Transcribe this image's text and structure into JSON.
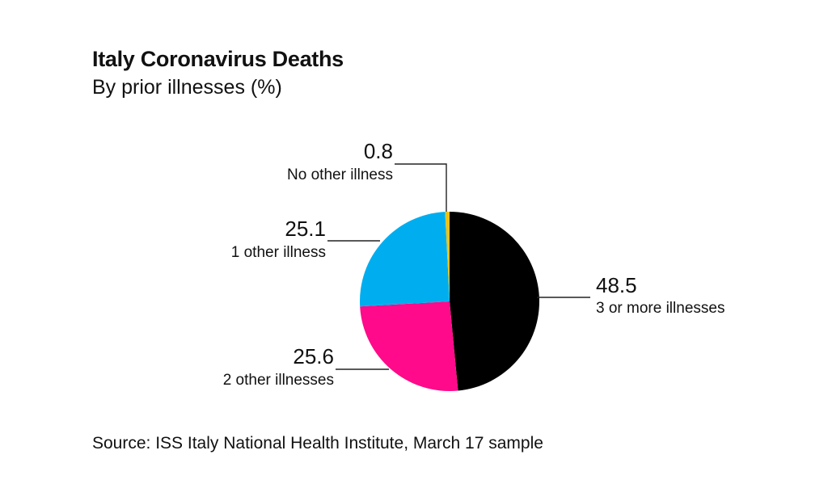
{
  "header": {
    "title": "Italy Coronavirus Deaths",
    "subtitle": "By prior illnesses (%)"
  },
  "footer": {
    "source": "Source: ISS Italy National Health Institute, March 17 sample"
  },
  "chart_data": {
    "type": "pie",
    "title": "Italy Coronavirus Deaths",
    "subtitle": "By prior illnesses (%)",
    "slices": [
      {
        "label": "3 or more illnesses",
        "value": 48.5,
        "value_text": "48.5",
        "color": "#000000"
      },
      {
        "label": "2 other illnesses",
        "value": 25.6,
        "value_text": "25.6",
        "color": "#FF0A8A"
      },
      {
        "label": "1 other illness",
        "value": 25.1,
        "value_text": "25.1",
        "color": "#00AEEF"
      },
      {
        "label": "No other illness",
        "value": 0.8,
        "value_text": "0.8",
        "color": "#E8C21C"
      }
    ],
    "start": "12 o'clock",
    "direction": "clockwise",
    "legend": "none (direct labels with leader lines)",
    "source": "Source: ISS Italy National Health Institute, March 17 sample"
  }
}
